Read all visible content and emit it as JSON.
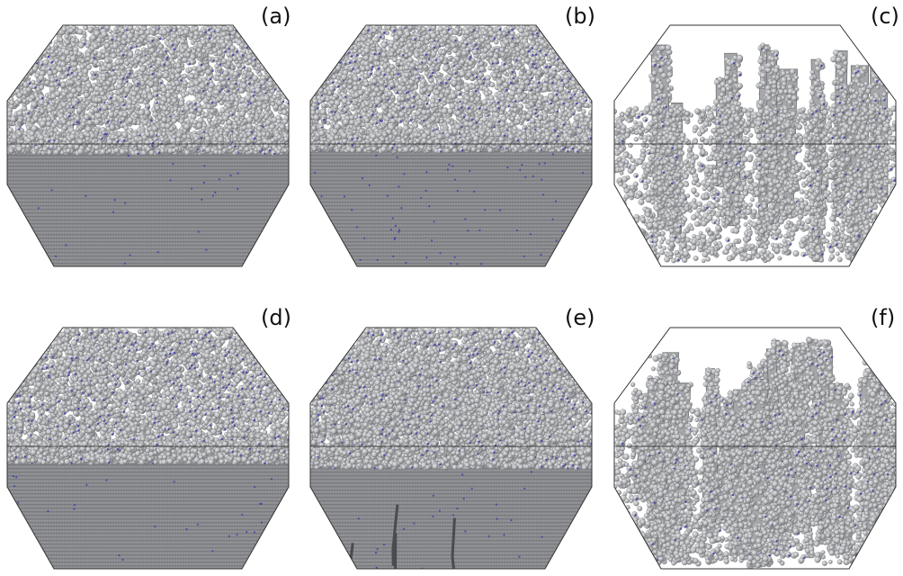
{
  "figure": {
    "colors": {
      "background": "#ffffff",
      "atom_light": "#c9cacc",
      "atom_mid": "#a6a7aa",
      "atom_dark": "#6f7073",
      "bulk": "#8b8c8f",
      "bulk_stripe": "#7a7b7e",
      "defect": "#3b3bb0",
      "frame": "#333333"
    },
    "panels": [
      {
        "label": "(a)",
        "style": "flat-rough-surface",
        "surface_level": 0.45
      },
      {
        "label": "(b)",
        "style": "flat-rough-surface-more-defects",
        "surface_level": 0.42
      },
      {
        "label": "(c)",
        "style": "porous-columnar",
        "surface_level": 0.0
      },
      {
        "label": "(d)",
        "style": "wavy-surface",
        "surface_level": 0.55
      },
      {
        "label": "(e)",
        "style": "clustered-surface-with-cracks",
        "surface_level": 0.62
      },
      {
        "label": "(f)",
        "style": "porous-needles",
        "surface_level": 0.0
      }
    ]
  }
}
